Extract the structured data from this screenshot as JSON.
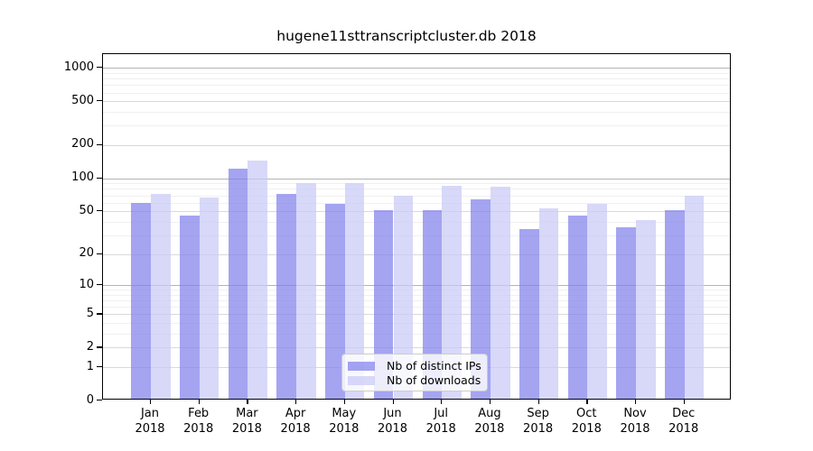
{
  "chart_data": {
    "type": "bar",
    "title": "hugene11sttranscriptcluster.db 2018",
    "categories": [
      "Jan",
      "Feb",
      "Mar",
      "Apr",
      "May",
      "Jun",
      "Jul",
      "Aug",
      "Sep",
      "Oct",
      "Nov",
      "Dec"
    ],
    "year_label": "2018",
    "series": [
      {
        "name": "Nb of distinct IPs",
        "base_color": "#8181eb",
        "apparent_color": "#a4a4f0",
        "values": [
          57,
          44,
          117,
          70,
          56,
          49,
          49,
          62,
          33,
          44,
          34,
          49
        ]
      },
      {
        "name": "Nb of downloads",
        "base_color": "#c9c9f6",
        "apparent_color": "#d8d8f8",
        "values": [
          70,
          64,
          140,
          87,
          87,
          67,
          83,
          81,
          51,
          56,
          40,
          67
        ]
      }
    ],
    "bar_alpha": 0.72,
    "y_ticks": [
      0,
      1,
      2,
      5,
      10,
      20,
      50,
      100,
      200,
      500,
      1000
    ],
    "y_minor_ticks": [
      3,
      4,
      6,
      7,
      8,
      9,
      30,
      40,
      60,
      70,
      80,
      90,
      300,
      400,
      600,
      700,
      800,
      900
    ],
    "y_scale": "log10(value+1)",
    "ylim": [
      0,
      1000
    ],
    "xlabel": "",
    "ylabel": "",
    "grid": true,
    "legend_position": "bottom-center-inside"
  },
  "colors": {
    "background": "#ffffff",
    "axis": "#000000",
    "grid_major": "#d9d9d9",
    "grid_major_emphasis": "#b3b3b3",
    "grid_minor": "#f0f0f0",
    "legend_border": "#cccccc",
    "text": "#000000"
  }
}
